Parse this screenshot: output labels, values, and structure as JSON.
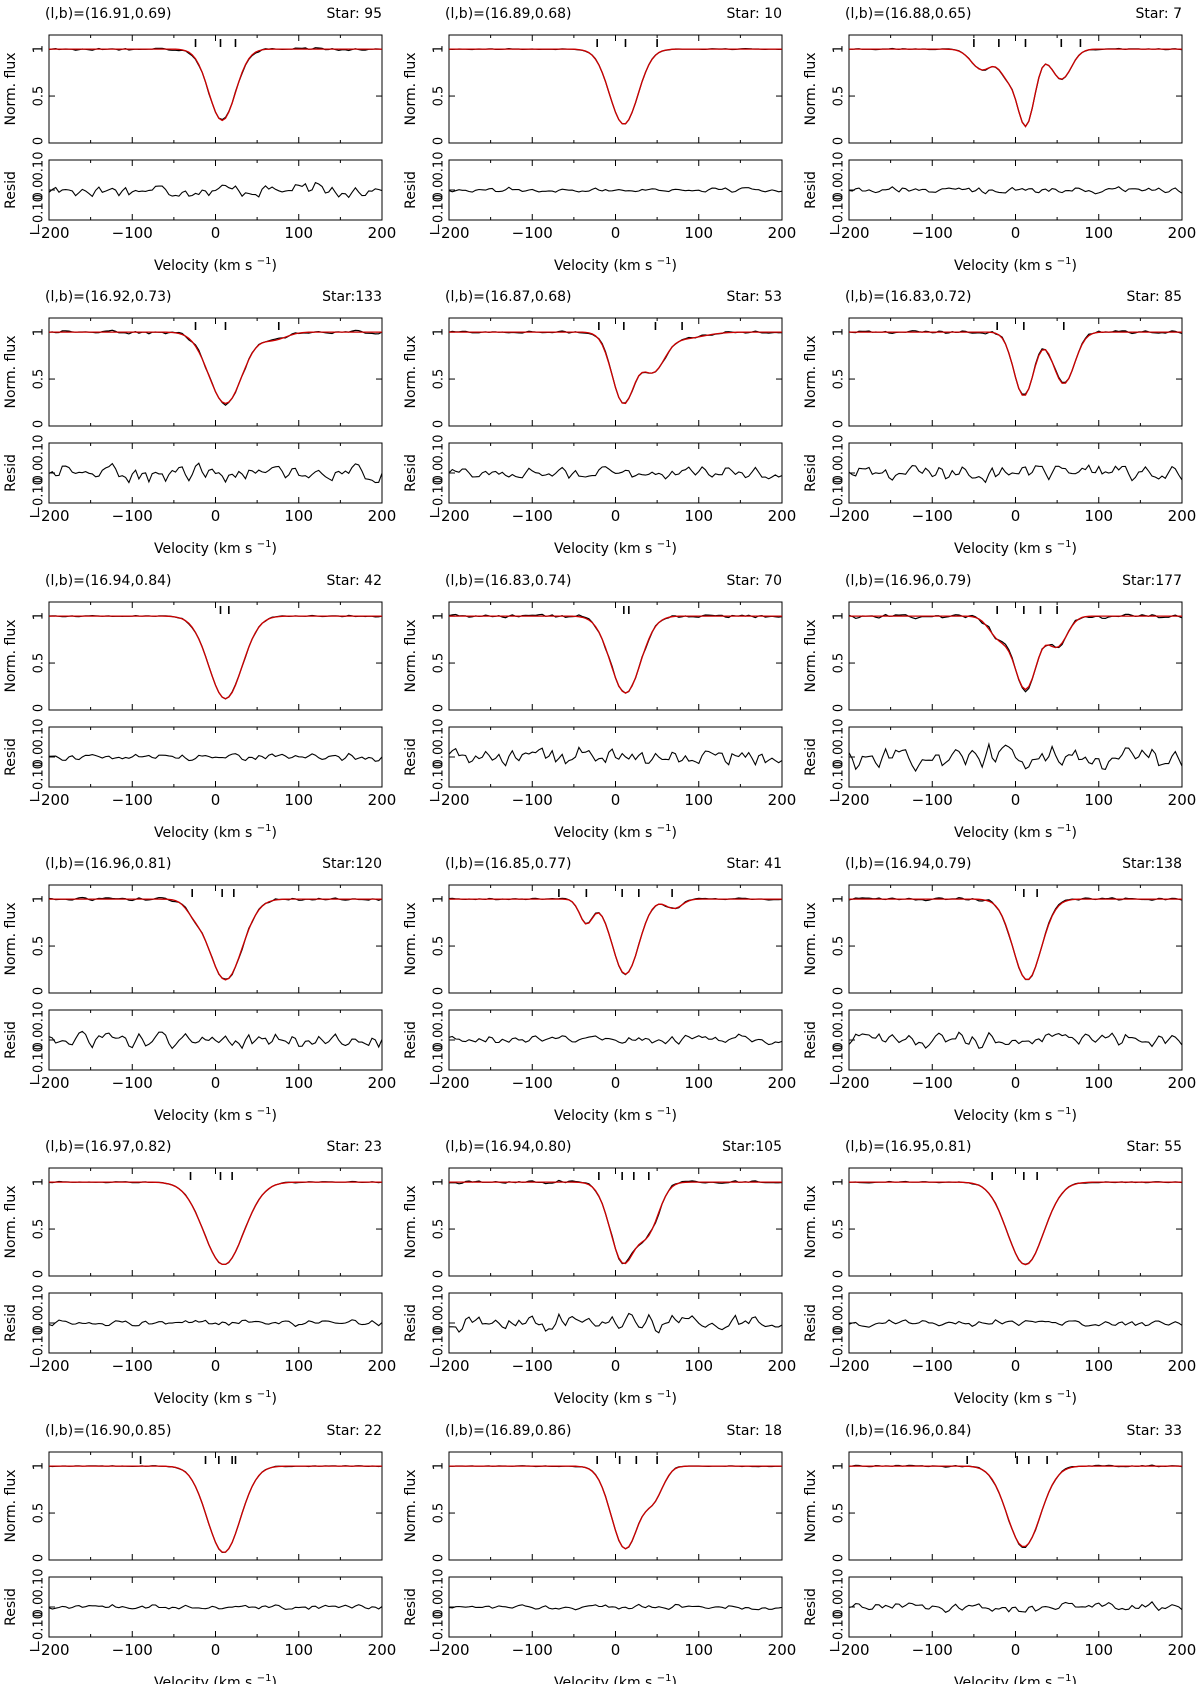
{
  "labels": {
    "flux_axis": "Norm. flux",
    "resid_axis": "Resid",
    "velocity_axis": "Velocity (km s",
    "velocity_exp": "−1",
    "velocity_close": ")",
    "flux_ticks": [
      "0",
      "0.5",
      "1"
    ],
    "resid_ticks": [
      "−0.10",
      "0.0",
      "0.10"
    ],
    "x_ticks": [
      "−200",
      "−100",
      "0",
      "100",
      "200"
    ]
  },
  "colors": {
    "observed": "#000000",
    "model": "#cc0000"
  },
  "chart_data": [
    {
      "type": "line",
      "coord": "(l,b)=(16.91,0.69)",
      "star": "Star: 95",
      "x_range": [
        -200,
        200
      ],
      "flux_range": [
        0,
        1.15
      ],
      "resid_range": [
        -0.1,
        0.1
      ],
      "components": [
        {
          "v": 8,
          "depth": 0.76,
          "sigma": 16
        }
      ],
      "markers": [
        -24,
        6,
        24
      ],
      "resid_amp": 0.03
    },
    {
      "type": "line",
      "coord": "(l,b)=(16.89,0.68)",
      "star": "Star: 10",
      "x_range": [
        -200,
        200
      ],
      "flux_range": [
        0,
        1.15
      ],
      "resid_range": [
        -0.1,
        0.1
      ],
      "components": [
        {
          "v": 10,
          "depth": 0.8,
          "sigma": 17
        }
      ],
      "markers": [
        -22,
        12,
        50
      ],
      "resid_amp": 0.01
    },
    {
      "type": "line",
      "coord": "(l,b)=(16.88,0.65)",
      "star": "Star: 7",
      "x_range": [
        -200,
        200
      ],
      "flux_range": [
        0,
        1.15
      ],
      "resid_range": [
        -0.1,
        0.1
      ],
      "components": [
        {
          "v": -40,
          "depth": 0.22,
          "sigma": 13
        },
        {
          "v": -10,
          "depth": 0.25,
          "sigma": 10
        },
        {
          "v": 12,
          "depth": 0.82,
          "sigma": 11
        },
        {
          "v": 55,
          "depth": 0.32,
          "sigma": 12
        }
      ],
      "markers": [
        -50,
        -20,
        12,
        55,
        78
      ],
      "resid_amp": 0.015
    },
    {
      "type": "line",
      "coord": "(l,b)=(16.92,0.73)",
      "star": "Star:133",
      "x_range": [
        -200,
        200
      ],
      "flux_range": [
        0,
        1.15
      ],
      "resid_range": [
        -0.1,
        0.1
      ],
      "components": [
        {
          "v": 12,
          "depth": 0.76,
          "sigma": 20
        },
        {
          "v": 70,
          "depth": 0.08,
          "sigma": 15
        }
      ],
      "markers": [
        -24,
        12,
        76
      ],
      "resid_amp": 0.035
    },
    {
      "type": "line",
      "coord": "(l,b)=(16.87,0.68)",
      "star": "Star: 53",
      "x_range": [
        -200,
        200
      ],
      "flux_range": [
        0,
        1.15
      ],
      "resid_range": [
        -0.1,
        0.1
      ],
      "components": [
        {
          "v": 10,
          "depth": 0.76,
          "sigma": 14
        },
        {
          "v": 45,
          "depth": 0.4,
          "sigma": 14
        },
        {
          "v": 80,
          "depth": 0.07,
          "sigma": 25
        }
      ],
      "markers": [
        -20,
        10,
        48,
        80
      ],
      "resid_amp": 0.025
    },
    {
      "type": "line",
      "coord": "(l,b)=(16.83,0.72)",
      "star": "Star: 85",
      "x_range": [
        -200,
        200
      ],
      "flux_range": [
        0,
        1.15
      ],
      "resid_range": [
        -0.1,
        0.1
      ],
      "components": [
        {
          "v": 10,
          "depth": 0.68,
          "sigma": 12
        },
        {
          "v": 58,
          "depth": 0.55,
          "sigma": 13
        }
      ],
      "markers": [
        -22,
        10,
        58
      ],
      "resid_amp": 0.035
    },
    {
      "type": "line",
      "coord": "(l,b)=(16.94,0.84)",
      "star": "Star: 42",
      "x_range": [
        -200,
        200
      ],
      "flux_range": [
        0,
        1.15
      ],
      "resid_range": [
        -0.1,
        0.1
      ],
      "components": [
        {
          "v": 12,
          "depth": 0.88,
          "sigma": 20
        }
      ],
      "markers": [
        6,
        16
      ],
      "resid_amp": 0.015
    },
    {
      "type": "line",
      "coord": "(l,b)=(16.83,0.74)",
      "star": "Star: 70",
      "x_range": [
        -200,
        200
      ],
      "flux_range": [
        0,
        1.15
      ],
      "resid_range": [
        -0.1,
        0.1
      ],
      "components": [
        {
          "v": 12,
          "depth": 0.82,
          "sigma": 18
        }
      ],
      "markers": [
        10,
        16
      ],
      "resid_amp": 0.04
    },
    {
      "type": "line",
      "coord": "(l,b)=(16.96,0.79)",
      "star": "Star:177",
      "x_range": [
        -200,
        200
      ],
      "flux_range": [
        0,
        1.15
      ],
      "resid_range": [
        -0.1,
        0.1
      ],
      "components": [
        {
          "v": -20,
          "depth": 0.22,
          "sigma": 12
        },
        {
          "v": 12,
          "depth": 0.78,
          "sigma": 14
        },
        {
          "v": 50,
          "depth": 0.32,
          "sigma": 12
        }
      ],
      "markers": [
        -22,
        10,
        30,
        50
      ],
      "resid_amp": 0.05
    },
    {
      "type": "line",
      "coord": "(l,b)=(16.96,0.81)",
      "star": "Star:120",
      "x_range": [
        -200,
        200
      ],
      "flux_range": [
        0,
        1.15
      ],
      "resid_range": [
        -0.1,
        0.1
      ],
      "components": [
        {
          "v": 12,
          "depth": 0.86,
          "sigma": 20
        },
        {
          "v": -25,
          "depth": 0.1,
          "sigma": 10
        }
      ],
      "markers": [
        -28,
        8,
        22
      ],
      "resid_amp": 0.03
    },
    {
      "type": "line",
      "coord": "(l,b)=(16.85,0.77)",
      "star": "Star: 41",
      "x_range": [
        -200,
        200
      ],
      "flux_range": [
        0,
        1.15
      ],
      "resid_range": [
        -0.1,
        0.1
      ],
      "components": [
        {
          "v": -35,
          "depth": 0.26,
          "sigma": 8
        },
        {
          "v": 12,
          "depth": 0.8,
          "sigma": 16
        },
        {
          "v": 70,
          "depth": 0.1,
          "sigma": 10
        }
      ],
      "markers": [
        -68,
        -35,
        8,
        28,
        68
      ],
      "resid_amp": 0.02
    },
    {
      "type": "line",
      "coord": "(l,b)=(16.94,0.79)",
      "star": "Star:138",
      "x_range": [
        -200,
        200
      ],
      "flux_range": [
        0,
        1.15
      ],
      "resid_range": [
        -0.1,
        0.1
      ],
      "components": [
        {
          "v": 14,
          "depth": 0.86,
          "sigma": 17
        }
      ],
      "markers": [
        10,
        26
      ],
      "resid_amp": 0.03
    },
    {
      "type": "line",
      "coord": "(l,b)=(16.97,0.82)",
      "star": "Star: 23",
      "x_range": [
        -200,
        200
      ],
      "flux_range": [
        0,
        1.15
      ],
      "resid_range": [
        -0.1,
        0.1
      ],
      "components": [
        {
          "v": 10,
          "depth": 0.88,
          "sigma": 24
        }
      ],
      "markers": [
        -30,
        6,
        20
      ],
      "resid_amp": 0.012
    },
    {
      "type": "line",
      "coord": "(l,b)=(16.94,0.80)",
      "star": "Star:105",
      "x_range": [
        -200,
        200
      ],
      "flux_range": [
        0,
        1.15
      ],
      "resid_range": [
        -0.1,
        0.1
      ],
      "components": [
        {
          "v": 10,
          "depth": 0.86,
          "sigma": 16
        },
        {
          "v": 38,
          "depth": 0.5,
          "sigma": 14
        }
      ],
      "markers": [
        -20,
        8,
        22,
        40
      ],
      "resid_amp": 0.035
    },
    {
      "type": "line",
      "coord": "(l,b)=(16.95,0.81)",
      "star": "Star: 55",
      "x_range": [
        -200,
        200
      ],
      "flux_range": [
        0,
        1.15
      ],
      "resid_range": [
        -0.1,
        0.1
      ],
      "components": [
        {
          "v": 12,
          "depth": 0.88,
          "sigma": 22
        }
      ],
      "markers": [
        -28,
        10,
        26
      ],
      "resid_amp": 0.015
    },
    {
      "type": "line",
      "coord": "(l,b)=(16.90,0.85)",
      "star": "Star: 22",
      "x_range": [
        -200,
        200
      ],
      "flux_range": [
        0,
        1.15
      ],
      "resid_range": [
        -0.1,
        0.1
      ],
      "components": [
        {
          "v": 10,
          "depth": 0.92,
          "sigma": 20
        }
      ],
      "markers": [
        -90,
        -12,
        4,
        20,
        24
      ],
      "resid_amp": 0.01
    },
    {
      "type": "line",
      "coord": "(l,b)=(16.89,0.86)",
      "star": "Star: 18",
      "x_range": [
        -200,
        200
      ],
      "flux_range": [
        0,
        1.15
      ],
      "resid_range": [
        -0.1,
        0.1
      ],
      "components": [
        {
          "v": 12,
          "depth": 0.88,
          "sigma": 17
        },
        {
          "v": 45,
          "depth": 0.32,
          "sigma": 12
        }
      ],
      "markers": [
        -22,
        5,
        25,
        50
      ],
      "resid_amp": 0.01
    },
    {
      "type": "line",
      "coord": "(l,b)=(16.96,0.84)",
      "star": "Star: 33",
      "x_range": [
        -200,
        200
      ],
      "flux_range": [
        0,
        1.15
      ],
      "resid_range": [
        -0.1,
        0.1
      ],
      "components": [
        {
          "v": 10,
          "depth": 0.86,
          "sigma": 20
        }
      ],
      "markers": [
        -58,
        2,
        16,
        38
      ],
      "resid_amp": 0.02
    }
  ]
}
